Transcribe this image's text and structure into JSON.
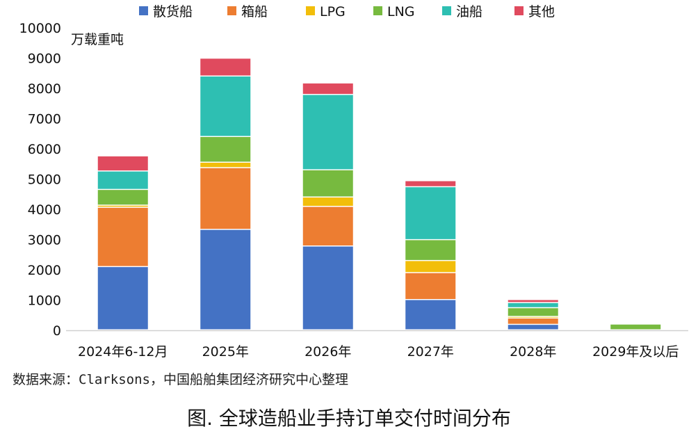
{
  "chart_data": {
    "type": "bar",
    "stacked": true,
    "ylabel": "万载重吨",
    "ylim": [
      0,
      10000
    ],
    "yticks": [
      0,
      1000,
      2000,
      3000,
      4000,
      5000,
      6000,
      7000,
      8000,
      9000,
      10000
    ],
    "grid": false,
    "legend_position": "top",
    "categories": [
      "2024年6-12月",
      "2025年",
      "2026年",
      "2027年",
      "2028年",
      "2029年及以后"
    ],
    "series": [
      {
        "name": "散货船",
        "color": "#4472C4",
        "values": [
          2090,
          3320,
          2770,
          1000,
          180,
          0
        ]
      },
      {
        "name": "箱船",
        "color": "#ED7D31",
        "values": [
          1960,
          2040,
          1310,
          890,
          210,
          0
        ]
      },
      {
        "name": "LPG",
        "color": "#F2BE0A",
        "values": [
          70,
          180,
          310,
          400,
          50,
          0
        ]
      },
      {
        "name": "LNG",
        "color": "#77BA3F",
        "values": [
          520,
          850,
          900,
          690,
          290,
          190
        ]
      },
      {
        "name": "油船",
        "color": "#2EBFB2",
        "values": [
          610,
          2000,
          2490,
          1750,
          170,
          0
        ]
      },
      {
        "name": "其他",
        "color": "#E04A5E",
        "values": [
          500,
          590,
          380,
          200,
          100,
          0
        ]
      }
    ]
  },
  "source": "数据来源：Clarksons，中国船舶集团经济研究中心整理",
  "caption": "图. 全球造船业手持订单交付时间分布"
}
